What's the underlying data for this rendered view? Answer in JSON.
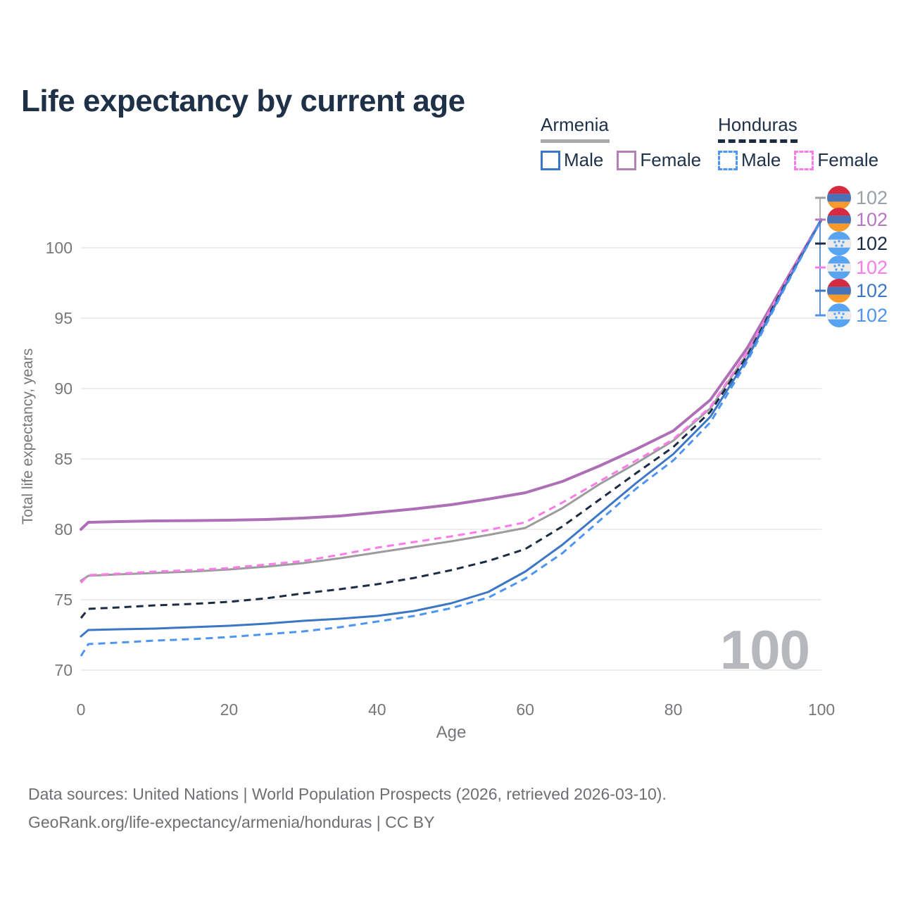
{
  "title": "Life expectancy by current age",
  "legend": {
    "groups": [
      {
        "country": "Armenia",
        "line_style": "solid",
        "items": [
          {
            "label": "Male"
          },
          {
            "label": "Female"
          }
        ]
      },
      {
        "country": "Honduras",
        "line_style": "dashed",
        "items": [
          {
            "label": "Male"
          },
          {
            "label": "Female"
          }
        ]
      }
    ]
  },
  "colors": {
    "title_text": "#1e3148",
    "axis_text": "#76777b",
    "gridline": "#ededed",
    "watermark": "#b6b8bd",
    "armenia_male": "#3c77c5",
    "armenia_female": "#ad6fb5",
    "armenia_both": "#9c9c9c",
    "honduras_male": "#4e95f2",
    "honduras_female": "#fa7ce8",
    "honduras_both": "#1b2c44",
    "armenia_flag": [
      "#d62a42",
      "#4873b8",
      "#f7992b"
    ],
    "honduras_flag": [
      "#59a4f0",
      "#edebe9"
    ]
  },
  "age_cursor_label": "100",
  "chart_data": {
    "type": "line",
    "title": "Life expectancy by current age",
    "xlabel": "Age",
    "ylabel": "Total life expectancy, years",
    "xlim": [
      0,
      100
    ],
    "ylim": [
      69.5,
      103
    ],
    "x_ticks": [
      0,
      20,
      40,
      60,
      80,
      100
    ],
    "y_ticks": [
      70,
      75,
      80,
      85,
      90,
      95,
      100
    ],
    "grid": "horizontal",
    "legend_position": "top-right",
    "x": [
      0,
      1,
      5,
      10,
      15,
      20,
      25,
      30,
      35,
      40,
      45,
      50,
      55,
      60,
      65,
      70,
      75,
      80,
      85,
      90,
      95,
      100
    ],
    "series": [
      {
        "id": "armenia-both",
        "name": "Armenia Both sexes",
        "country": "Armenia",
        "sex": "Both",
        "color": "#9c9c9c",
        "dash": "solid",
        "width": 3,
        "values": [
          76.35,
          76.7,
          76.8,
          76.9,
          77.0,
          77.15,
          77.35,
          77.6,
          77.95,
          78.35,
          78.75,
          79.15,
          79.6,
          80.1,
          81.5,
          83.2,
          84.7,
          86.3,
          88.6,
          92.5,
          97.35,
          102
        ]
      },
      {
        "id": "armenia-female",
        "name": "Armenia Female",
        "country": "Armenia",
        "sex": "Female",
        "color": "#ad6fb5",
        "dash": "solid",
        "width": 4,
        "values": [
          80.0,
          80.5,
          80.55,
          80.6,
          80.62,
          80.65,
          80.7,
          80.8,
          80.95,
          81.2,
          81.45,
          81.75,
          82.15,
          82.6,
          83.4,
          84.5,
          85.7,
          87.0,
          89.2,
          92.9,
          97.5,
          102
        ]
      },
      {
        "id": "honduras-female",
        "name": "Honduras Female",
        "country": "Honduras",
        "sex": "Female",
        "color": "#fa7ce8",
        "dash": "dashed",
        "width": 3,
        "values": [
          76.2,
          76.75,
          76.85,
          77.0,
          77.1,
          77.25,
          77.5,
          77.75,
          78.2,
          78.7,
          79.1,
          79.5,
          79.95,
          80.5,
          81.9,
          83.4,
          84.9,
          86.4,
          88.7,
          92.6,
          97.4,
          102
        ]
      },
      {
        "id": "honduras-both",
        "name": "Honduras Both sexes",
        "country": "Honduras",
        "sex": "Both",
        "color": "#1b2c44",
        "dash": "dashed",
        "width": 3,
        "values": [
          73.7,
          74.35,
          74.45,
          74.6,
          74.7,
          74.85,
          75.1,
          75.45,
          75.75,
          76.1,
          76.55,
          77.1,
          77.75,
          78.6,
          80.2,
          82.1,
          84.0,
          85.85,
          88.35,
          92.35,
          97.3,
          102
        ]
      },
      {
        "id": "armenia-male",
        "name": "Armenia Male",
        "country": "Armenia",
        "sex": "Male",
        "color": "#3c77c5",
        "dash": "solid",
        "width": 3,
        "values": [
          72.4,
          72.85,
          72.9,
          72.95,
          73.05,
          73.15,
          73.3,
          73.5,
          73.65,
          73.85,
          74.2,
          74.75,
          75.55,
          77.0,
          78.9,
          81.1,
          83.3,
          85.35,
          88.0,
          92.15,
          97.2,
          102
        ]
      },
      {
        "id": "honduras-male",
        "name": "Honduras Male",
        "country": "Honduras",
        "sex": "Male",
        "color": "#4e95f2",
        "dash": "dashed",
        "width": 3,
        "values": [
          71.0,
          71.85,
          71.95,
          72.1,
          72.2,
          72.35,
          72.55,
          72.75,
          73.05,
          73.45,
          73.85,
          74.4,
          75.15,
          76.5,
          78.3,
          80.6,
          82.9,
          84.9,
          87.6,
          91.95,
          97.1,
          102
        ]
      }
    ],
    "end_labels": [
      {
        "flag": "armenia",
        "value": "102",
        "color": "#9aa0a6"
      },
      {
        "flag": "armenia",
        "value": "102",
        "color": "#b678be"
      },
      {
        "flag": "honduras",
        "value": "102",
        "color": "#1b2c44"
      },
      {
        "flag": "honduras",
        "value": "102",
        "color": "#fa7ce8"
      },
      {
        "flag": "armenia",
        "value": "102",
        "color": "#3c77c5"
      },
      {
        "flag": "honduras",
        "value": "102",
        "color": "#4e95f2"
      }
    ]
  },
  "footer": {
    "line1": "Data sources: United Nations | World Population Prospects (2026, retrieved 2026-03-10).",
    "line2": "GeoRank.org/life-expectancy/armenia/honduras | CC BY"
  }
}
